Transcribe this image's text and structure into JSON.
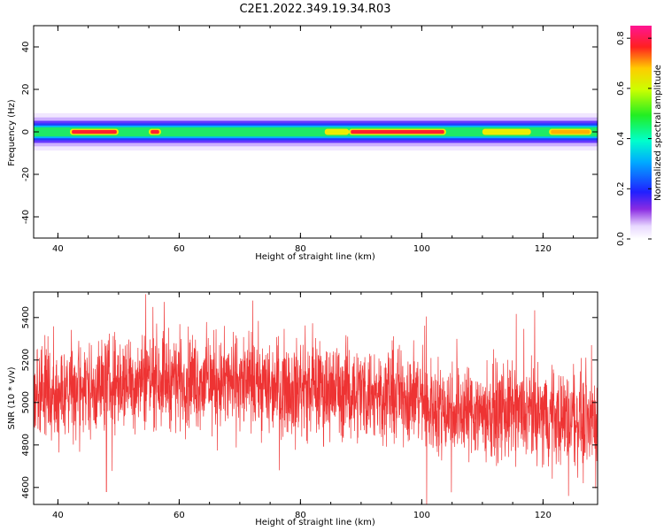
{
  "figure_title": "C2E1.2022.349.19.34.R03",
  "chart_data": [
    {
      "type": "heatmap",
      "title": "",
      "xlabel": "Height of straight line (km)",
      "ylabel": "Frequency (Hz)",
      "xlim": [
        36,
        129
      ],
      "ylim": [
        -50,
        50
      ],
      "x_ticks": [
        "40",
        "60",
        "80",
        "100",
        "120"
      ],
      "y_ticks": [
        "-40",
        "-20",
        "0",
        "20",
        "40"
      ],
      "band": {
        "center_frequency_hz": 0,
        "half_width_hz": 4,
        "peak_amplitude_segments": [
          {
            "x": [
              42,
              50
            ],
            "level": 0.8
          },
          {
            "x": [
              55,
              57
            ],
            "level": 0.8
          },
          {
            "x": [
              84,
              88
            ],
            "level": 0.6
          },
          {
            "x": [
              88,
              104
            ],
            "level": 0.85
          },
          {
            "x": [
              110,
              118
            ],
            "level": 0.6
          },
          {
            "x": [
              121,
              128
            ],
            "level": 0.7
          }
        ]
      },
      "colorbar": {
        "label": "Normalized spectral amplitude",
        "ticks": [
          "0.0",
          "0.2",
          "0.4",
          "0.6",
          "0.8"
        ],
        "range": [
          0,
          0.85
        ]
      }
    },
    {
      "type": "line",
      "title": "",
      "xlabel": "Height of straight line (km)",
      "ylabel": "SNR (10 * v/v)",
      "xlim": [
        36,
        129
      ],
      "ylim": [
        4520,
        5520
      ],
      "x_ticks": [
        "40",
        "60",
        "80",
        "100",
        "120"
      ],
      "y_ticks": [
        "4600",
        "4800",
        "5000",
        "5200",
        "5400"
      ],
      "color": "#ee3333",
      "trend": {
        "x": [
          36,
          45,
          55,
          65,
          75,
          85,
          95,
          100,
          101,
          110,
          120,
          129
        ],
        "y": [
          5040,
          5070,
          5120,
          5100,
          5080,
          5060,
          5040,
          5030,
          4980,
          4960,
          4940,
          4920
        ]
      },
      "noise_amplitude": 110,
      "samples": 2600,
      "extremes": [
        {
          "x": 54.5,
          "y": 5510
        },
        {
          "x": 48.0,
          "y": 4580
        },
        {
          "x": 100.8,
          "y": 4520
        },
        {
          "x": 124.2,
          "y": 4560
        },
        {
          "x": 128.0,
          "y": 5270
        }
      ]
    }
  ]
}
